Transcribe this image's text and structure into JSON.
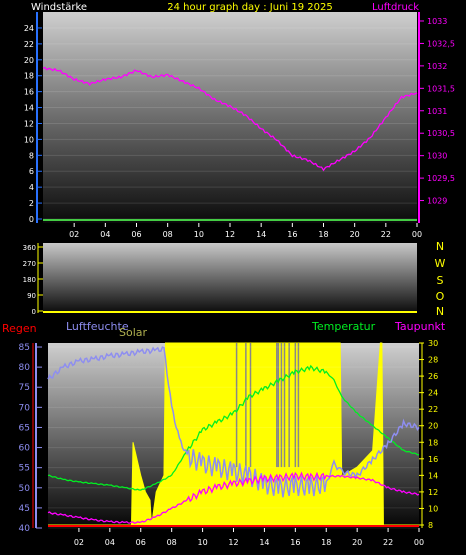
{
  "header": {
    "left_label": "Windstärke",
    "title": "24 hour graph day : Juni 19 2025",
    "right_label": "Luftdruck"
  },
  "middle": {
    "compass": [
      "N",
      "W",
      "S",
      "O",
      "N"
    ]
  },
  "bottom": {
    "labels": {
      "regen": "Regen",
      "luftfeuchte": "Luftfeuchte",
      "solar": "Solar",
      "temperatur": "Temperatur",
      "taupunkt": "Taupunkt"
    }
  },
  "colors": {
    "wind_axis": "#2a72ff",
    "pressure": "#ff00ff",
    "title": "#ffff00",
    "humidity": "#8e8ef0",
    "solar": "#ffff00",
    "temperature": "#00ee22",
    "dewpoint": "#ff00ff",
    "rain": "#ff0000",
    "right_axis": "#ffff00"
  },
  "chart_data": [
    {
      "type": "line",
      "title": "24 hour graph day : Juni 19 2025",
      "x_ticks": [
        "02",
        "04",
        "06",
        "08",
        "10",
        "12",
        "14",
        "16",
        "18",
        "20",
        "22",
        "00"
      ],
      "wind": {
        "label": "Windstärke",
        "ylim": [
          0,
          25
        ],
        "y_ticks": [
          "0",
          "2",
          "4",
          "6",
          "8",
          "10",
          "12",
          "14",
          "16",
          "18",
          "20",
          "22",
          "24"
        ],
        "x": [
          0,
          24
        ],
        "values": [
          0,
          0
        ]
      },
      "pressure": {
        "label": "Luftdruck",
        "ylim": [
          1028.5,
          1033.2
        ],
        "y_ticks": [
          "1029",
          "1029,5",
          "1030",
          "1030,5",
          "1031",
          "1031,5",
          "1032",
          "1032,5",
          "1033"
        ],
        "x": [
          0,
          1,
          2,
          3,
          4,
          5,
          6,
          7,
          8,
          9,
          10,
          11,
          12,
          13,
          14,
          15,
          16,
          17,
          18,
          19,
          20,
          21,
          22,
          23,
          24
        ],
        "values": [
          1031.95,
          1031.9,
          1031.7,
          1031.6,
          1031.7,
          1031.75,
          1031.9,
          1031.75,
          1031.8,
          1031.65,
          1031.5,
          1031.25,
          1031.1,
          1030.9,
          1030.6,
          1030.35,
          1030.0,
          1029.9,
          1029.7,
          1029.9,
          1030.1,
          1030.4,
          1030.85,
          1031.3,
          1031.4
        ]
      }
    },
    {
      "type": "line",
      "title": "",
      "ylim": [
        0,
        360
      ],
      "y_ticks": [
        "0",
        "90",
        "180",
        "270",
        "360"
      ],
      "x": [
        0,
        24
      ],
      "values": [
        0,
        0
      ]
    },
    {
      "type": "line",
      "title": "",
      "x_ticks": [
        "02",
        "04",
        "06",
        "08",
        "10",
        "12",
        "14",
        "16",
        "18",
        "20",
        "22",
        "00"
      ],
      "left_axis": {
        "ylim": [
          40,
          86
        ],
        "ticks": [
          "40",
          "45",
          "50",
          "55",
          "60",
          "65",
          "70",
          "75",
          "80",
          "85"
        ]
      },
      "right_axis": {
        "ylim": [
          8,
          30
        ],
        "ticks": [
          "8",
          "10",
          "12",
          "14",
          "16",
          "18",
          "20",
          "22",
          "24",
          "26",
          "28",
          "30"
        ]
      },
      "series": [
        {
          "name": "Luftfeuchte",
          "axis": "left",
          "x": [
            0,
            1,
            2,
            3,
            4,
            5,
            6,
            7,
            7.5,
            8,
            8.5,
            9,
            10,
            11,
            12,
            13,
            14,
            15,
            16,
            17,
            18,
            18.5,
            19,
            20,
            21,
            22,
            23,
            24
          ],
          "values": [
            77,
            80,
            81.5,
            82,
            82.8,
            83.2,
            83.8,
            84.2,
            84.5,
            70,
            62,
            58,
            56,
            55,
            54,
            53,
            51,
            50,
            50.5,
            50.3,
            51,
            56,
            54,
            53,
            57,
            61,
            66,
            65
          ]
        },
        {
          "name": "Solar",
          "axis": "right",
          "x": [
            0,
            5.4,
            5.5,
            6.0,
            6.3,
            6.6,
            6.7,
            7.0,
            7.5,
            7.6,
            8.0,
            18.3,
            18.4,
            18.9,
            19.0,
            19.1,
            20,
            21,
            21.5,
            21.6,
            21.7,
            24
          ],
          "values": [
            8,
            8,
            18,
            14,
            12,
            11,
            8,
            12,
            14,
            30,
            30,
            30,
            30,
            30,
            14,
            14,
            15,
            17,
            30,
            30,
            8,
            8
          ]
        },
        {
          "name": "Temperatur",
          "axis": "right",
          "x": [
            0,
            1,
            2,
            3,
            4,
            5,
            6,
            7,
            8,
            9,
            10,
            11,
            12,
            13,
            14,
            15,
            16,
            17,
            18,
            18.5,
            19,
            20,
            21,
            22,
            23,
            24
          ],
          "values": [
            14,
            13.5,
            13.2,
            13,
            12.8,
            12.5,
            12.2,
            13,
            14,
            17,
            19.5,
            20.5,
            21.5,
            23.5,
            24.5,
            25.5,
            26.5,
            27,
            26.5,
            25.5,
            23.5,
            21.5,
            20,
            18.5,
            17,
            16.5
          ]
        },
        {
          "name": "Taupunkt",
          "axis": "right",
          "x": [
            0,
            1,
            2,
            3,
            4,
            5,
            6,
            7,
            8,
            9,
            10,
            11,
            12,
            13,
            14,
            15,
            16,
            17,
            18,
            19,
            20,
            21,
            22,
            23,
            24
          ],
          "values": [
            9.5,
            9.2,
            8.9,
            8.6,
            8.4,
            8.3,
            8.3,
            9,
            10,
            11,
            12,
            12.6,
            13,
            13.3,
            13.6,
            13.7,
            13.9,
            13.8,
            13.9,
            13.9,
            13.7,
            13.4,
            12.5,
            12,
            11.7
          ]
        },
        {
          "name": "Regen",
          "axis": "right",
          "x": [
            0,
            24
          ],
          "values": [
            8,
            8
          ]
        }
      ]
    }
  ]
}
